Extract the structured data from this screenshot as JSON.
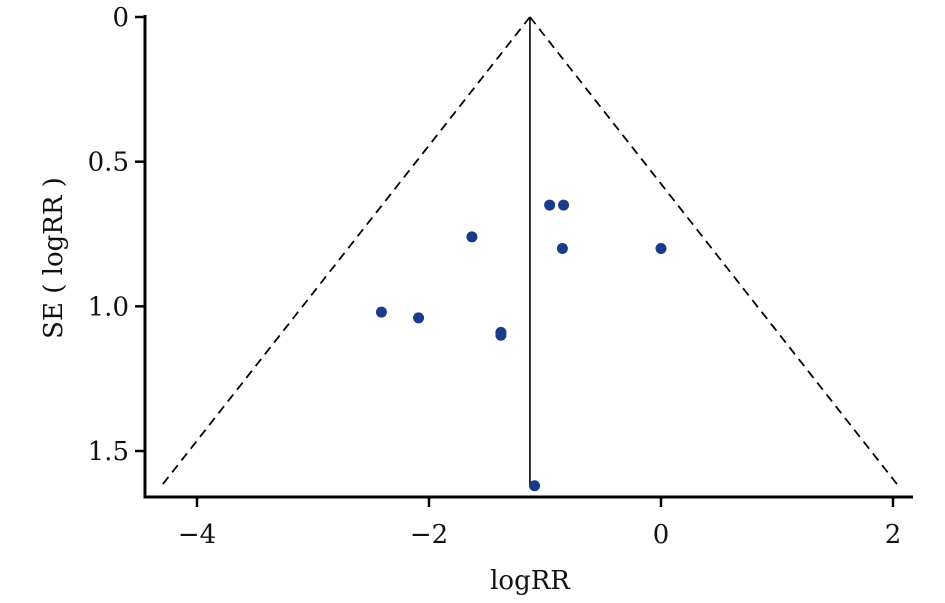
{
  "chart_data": {
    "type": "scatter",
    "title": "",
    "xlabel": "logRR",
    "ylabel": "SE ( logRR )",
    "xlim": [
      -4.35,
      2.05
    ],
    "ylim": [
      0,
      1.65
    ],
    "y_reversed": true,
    "x_ticks": [
      -4,
      -2,
      0,
      2
    ],
    "x_tick_labels": [
      "−4",
      "−2",
      "0",
      "2"
    ],
    "y_ticks": [
      0,
      0.5,
      1.0,
      1.5
    ],
    "y_tick_labels": [
      "0",
      "0.5",
      "1.0",
      "1.5"
    ],
    "pooled_estimate": -1.13,
    "funnel_max_se": 1.62,
    "funnel_multiplier": 1.96,
    "grid": false,
    "point_color": "#1a3a8a",
    "series": [
      {
        "points": [
          {
            "x": -0.96,
            "y": 0.65
          },
          {
            "x": -0.84,
            "y": 0.65
          },
          {
            "x": -1.63,
            "y": 0.76
          },
          {
            "x": -0.85,
            "y": 0.8
          },
          {
            "x": 0.0,
            "y": 0.8
          },
          {
            "x": -2.41,
            "y": 1.02
          },
          {
            "x": -2.09,
            "y": 1.04
          },
          {
            "x": -1.38,
            "y": 1.09
          },
          {
            "x": -1.38,
            "y": 1.1
          },
          {
            "x": -1.09,
            "y": 1.62
          }
        ]
      }
    ]
  }
}
